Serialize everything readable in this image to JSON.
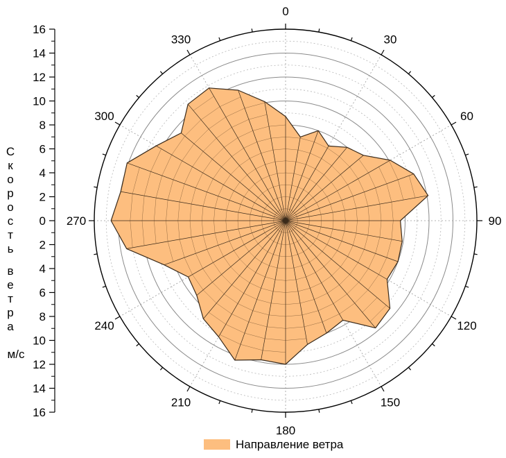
{
  "chart_data": {
    "type": "polar-area",
    "theta_unit": "degrees",
    "theta_direction": "clockwise",
    "theta_zero": "top",
    "theta_tick_labels": [
      "0",
      "30",
      "60",
      "90",
      "120",
      "150",
      "180",
      "210",
      "240",
      "270",
      "300",
      "330"
    ],
    "r_lim": [
      0,
      16
    ],
    "r_tick_labels": [
      "16",
      "14",
      "12",
      "10",
      "8",
      "6",
      "4",
      "2",
      "0",
      "2",
      "4",
      "6",
      "8",
      "10",
      "12",
      "14",
      "16"
    ],
    "ylabel": "Скорость ветра",
    "yunit": "м/с",
    "grid": true,
    "legend_position": "bottom",
    "series": [
      {
        "name": "Направление ветра",
        "color": "#FDBE7F",
        "edge_color": "#3a2a1a",
        "theta": [
          0,
          10,
          20,
          30,
          40,
          50,
          60,
          70,
          80,
          90,
          100,
          110,
          120,
          130,
          140,
          150,
          160,
          170,
          180,
          190,
          200,
          210,
          220,
          230,
          240,
          250,
          260,
          270,
          280,
          290,
          300,
          310,
          320,
          330,
          340,
          350
        ],
        "r": [
          8.7,
          7.1,
          8.0,
          7.2,
          8.0,
          8.5,
          10.1,
          11.4,
          12.1,
          9.6,
          9.9,
          10.0,
          9.8,
          11.4,
          11.7,
          9.6,
          10.0,
          10.5,
          12.0,
          11.8,
          12.4,
          11.2,
          10.7,
          9.7,
          9.4,
          10.8,
          13.5,
          14.6,
          14.0,
          14.1,
          12.5,
          11.4,
          12.7,
          12.8,
          11.6,
          10.1
        ]
      }
    ]
  }
}
